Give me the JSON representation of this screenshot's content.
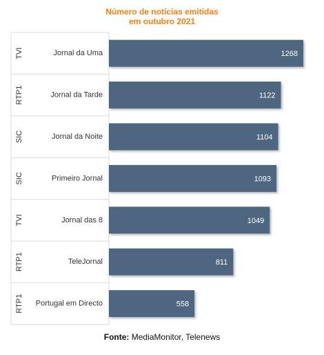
{
  "chart_data": {
    "type": "bar",
    "orientation": "horizontal",
    "title_line1": "Número de notícias emitidas",
    "title_line2": "em outubro 2021",
    "categories": [
      {
        "channel": "TVI",
        "program": "Jornal da Uma"
      },
      {
        "channel": "RTP1",
        "program": "Jornal da Tarde"
      },
      {
        "channel": "SIC",
        "program": "Jornal da Noite"
      },
      {
        "channel": "SIC",
        "program": "Primeiro Jornal"
      },
      {
        "channel": "TVI",
        "program": "Jornal das 8"
      },
      {
        "channel": "RTP1",
        "program": "TeleJornal"
      },
      {
        "channel": "RTP1",
        "program": "Portugal em Directo"
      }
    ],
    "values": [
      1268,
      1122,
      1104,
      1093,
      1049,
      811,
      558
    ],
    "xlim": [
      0,
      1268
    ],
    "grid": false,
    "legend": "none",
    "colors": {
      "bar": "#4f6681",
      "title": "#ff7f0e",
      "value_label": "#ffffff",
      "separator": "#d9d9d9"
    }
  },
  "source": {
    "label": "Fonte:",
    "text": "MediaMonitor, Telenews"
  }
}
